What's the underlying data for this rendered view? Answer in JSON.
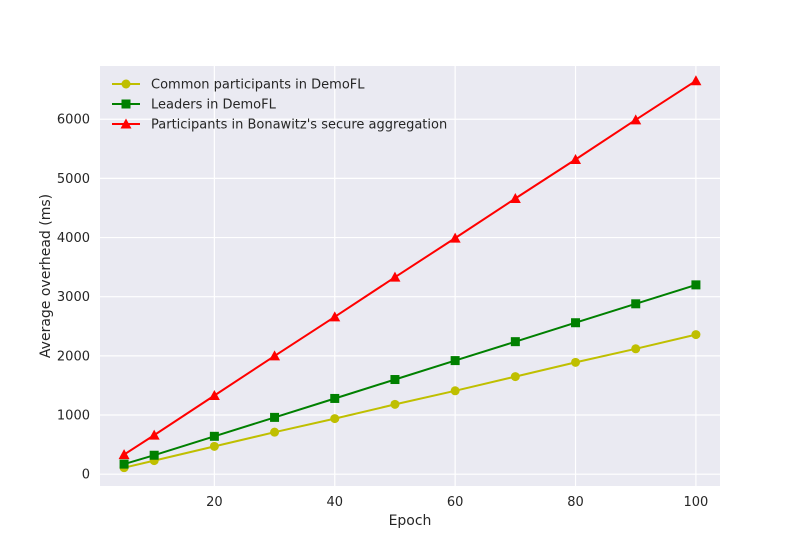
{
  "chart_data": {
    "type": "line",
    "title": "",
    "xlabel": "Epoch",
    "ylabel": "Average overhead (ms)",
    "xlim": [
      1,
      104
    ],
    "ylim": [
      -200,
      6900
    ],
    "xticks": [
      20,
      40,
      60,
      80,
      100
    ],
    "yticks": [
      0,
      1000,
      2000,
      3000,
      4000,
      5000,
      6000
    ],
    "grid": true,
    "background": "#eaeaf2",
    "legend": "top-left",
    "x": [
      5,
      10,
      20,
      30,
      40,
      50,
      60,
      70,
      80,
      90,
      100
    ],
    "series": [
      {
        "name": "Common participants in DemoFL",
        "color": "#bfbf00",
        "marker": "circle",
        "values": [
          110,
          230,
          470,
          710,
          940,
          1180,
          1410,
          1650,
          1890,
          2120,
          2360
        ]
      },
      {
        "name": "Leaders in DemoFL",
        "color": "#008000",
        "marker": "square",
        "values": [
          170,
          320,
          640,
          960,
          1280,
          1600,
          1920,
          2240,
          2560,
          2880,
          3200
        ]
      },
      {
        "name": "Participants in Bonawitz's secure aggregation",
        "color": "#ff0000",
        "marker": "triangle",
        "values": [
          330,
          660,
          1330,
          2000,
          2660,
          3330,
          3990,
          4660,
          5320,
          5990,
          6650
        ]
      }
    ]
  }
}
